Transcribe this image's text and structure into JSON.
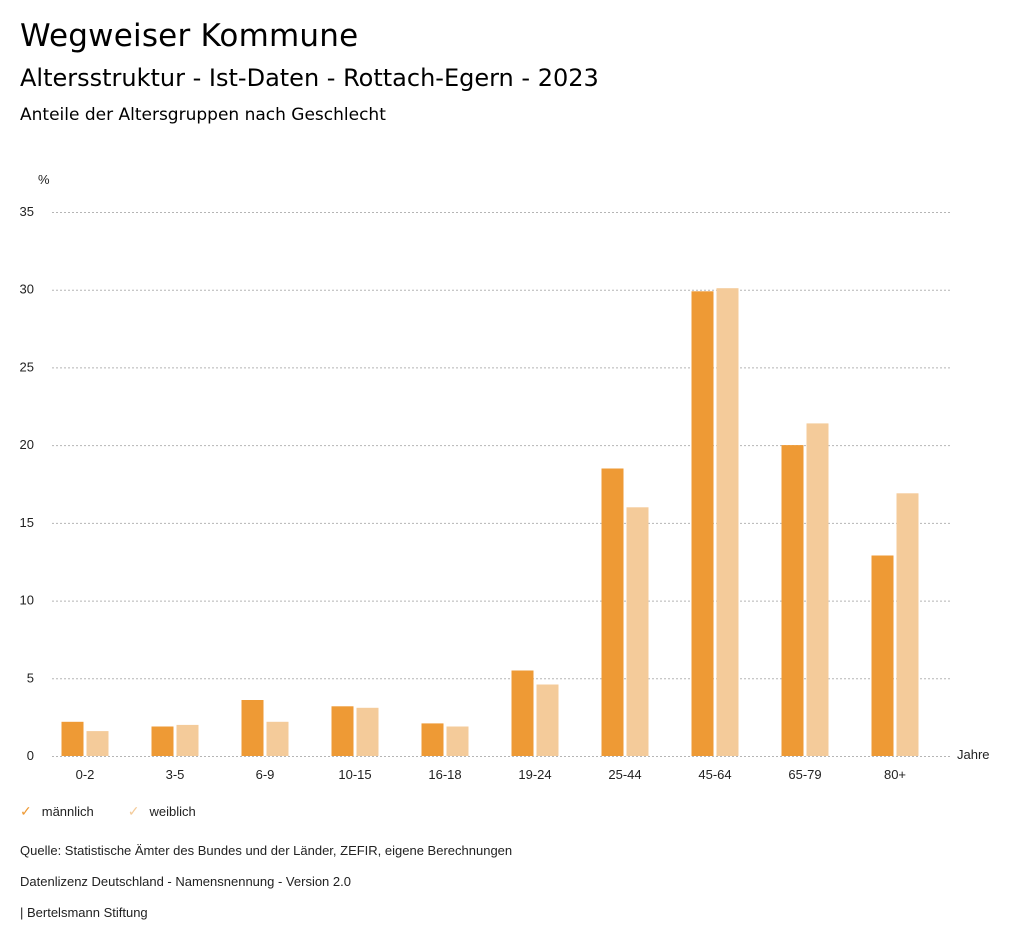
{
  "header": {
    "title": "Wegweiser Kommune",
    "subtitle": "Altersstruktur - Ist-Daten - Rottach-Egern - 2023",
    "subsubtitle": "Anteile der Altersgruppen nach Geschlecht"
  },
  "chart_data": {
    "type": "bar",
    "title": "Anteile der Altersgruppen nach Geschlecht",
    "xlabel": "Jahre",
    "ylabel": "%",
    "ylim": [
      0,
      35
    ],
    "yticks": [
      0,
      5,
      10,
      15,
      20,
      25,
      30,
      35
    ],
    "grid": true,
    "legend_position": "bottom-left",
    "categories": [
      "0-2",
      "3-5",
      "6-9",
      "10-15",
      "16-18",
      "19-24",
      "25-44",
      "45-64",
      "65-79",
      "80+"
    ],
    "series": [
      {
        "name": "männlich",
        "color": "#EE9A35",
        "values": [
          2.2,
          1.9,
          3.6,
          3.2,
          2.1,
          5.5,
          18.5,
          29.9,
          20.0,
          12.9
        ]
      },
      {
        "name": "weiblich",
        "color": "#F4CB9A",
        "values": [
          1.6,
          2.0,
          2.2,
          3.1,
          1.9,
          4.6,
          16.0,
          30.1,
          21.4,
          16.9
        ]
      }
    ]
  },
  "legend": {
    "check_icon": "checkmark-icon",
    "items": [
      {
        "label": "männlich",
        "color": "#EE9A35"
      },
      {
        "label": "weiblich",
        "color": "#F4CB9A"
      }
    ]
  },
  "footer": {
    "source": "Quelle: Statistische Ämter des Bundes und der Länder, ZEFIR, eigene Berechnungen",
    "license": "Datenlizenz Deutschland - Namensnennung - Version 2.0",
    "credit": "| Bertelsmann Stiftung"
  }
}
